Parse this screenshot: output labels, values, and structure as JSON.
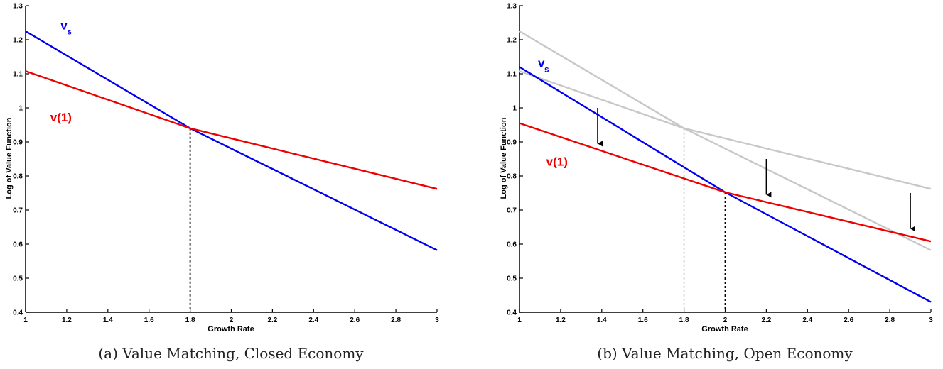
{
  "chart_data": [
    {
      "type": "line",
      "panel": "a",
      "caption": "(a)  Value Matching, Closed Economy",
      "xlabel": "Growth Rate",
      "ylabel": "Log of Value Function",
      "xlim": [
        1,
        3
      ],
      "ylim": [
        0.4,
        1.3
      ],
      "xticks": [
        "1",
        "1.2",
        "1.4",
        "1.6",
        "1.8",
        "2",
        "2.2",
        "2.4",
        "2.6",
        "2.8",
        "3"
      ],
      "yticks": [
        "0.4",
        "0.5",
        "0.6",
        "0.7",
        "0.8",
        "0.9",
        "1",
        "1.1",
        "1.2",
        "1.3"
      ],
      "grid": false,
      "series": [
        {
          "name": "v_s",
          "label_main": "v",
          "label_sub": "s",
          "color": "#0000ee",
          "x": [
            1,
            1.8,
            3
          ],
          "y": [
            1.225,
            0.94,
            0.582
          ],
          "label_at": [
            1.17,
            1.23
          ]
        },
        {
          "name": "v(1)",
          "label_main": "v(1)",
          "color": "#ee0000",
          "x": [
            1,
            1.8,
            3
          ],
          "y": [
            1.108,
            0.94,
            0.762
          ],
          "label_at": [
            1.12,
            0.96
          ]
        }
      ],
      "vlines": [
        {
          "x": 1.8,
          "y_top": 0.94,
          "color": "#000000"
        }
      ],
      "arrows": []
    },
    {
      "type": "line",
      "panel": "b",
      "caption": "(b)  Value Matching, Open Economy",
      "xlabel": "Growth Rate",
      "ylabel": "Log of Value Function",
      "xlim": [
        1,
        3
      ],
      "ylim": [
        0.4,
        1.3
      ],
      "xticks": [
        "1",
        "1.2",
        "1.4",
        "1.6",
        "1.8",
        "2",
        "2.2",
        "2.4",
        "2.6",
        "2.8",
        "3"
      ],
      "yticks": [
        "0.4",
        "0.5",
        "0.6",
        "0.7",
        "0.8",
        "0.9",
        "1",
        "1.1",
        "1.2",
        "1.3"
      ],
      "grid": false,
      "series": [
        {
          "name": "v_s (closed)",
          "color": "#c8c8c8",
          "x": [
            1,
            1.8,
            3
          ],
          "y": [
            1.225,
            0.94,
            0.582
          ]
        },
        {
          "name": "v(1) (closed)",
          "color": "#c8c8c8",
          "x": [
            1,
            1.8,
            3
          ],
          "y": [
            1.108,
            0.94,
            0.762
          ]
        },
        {
          "name": "v_s",
          "label_main": "v",
          "label_sub": "s",
          "color": "#0000ee",
          "x": [
            1,
            2,
            3
          ],
          "y": [
            1.12,
            0.752,
            0.43
          ],
          "label_at": [
            1.09,
            1.12
          ]
        },
        {
          "name": "v(1)",
          "label_main": "v(1)",
          "color": "#ee0000",
          "x": [
            1,
            2,
            3
          ],
          "y": [
            0.955,
            0.752,
            0.608
          ],
          "label_at": [
            1.13,
            0.83
          ]
        }
      ],
      "vlines": [
        {
          "x": 1.8,
          "y_top": 0.94,
          "color": "#c8c8c8"
        },
        {
          "x": 2,
          "y_top": 0.752,
          "color": "#000000"
        }
      ],
      "arrows": [
        {
          "x": 1.38,
          "y_from": 1.0,
          "y_to": 0.895
        },
        {
          "x": 2.2,
          "y_from": 0.85,
          "y_to": 0.745
        },
        {
          "x": 2.9,
          "y_from": 0.75,
          "y_to": 0.645
        }
      ]
    }
  ]
}
